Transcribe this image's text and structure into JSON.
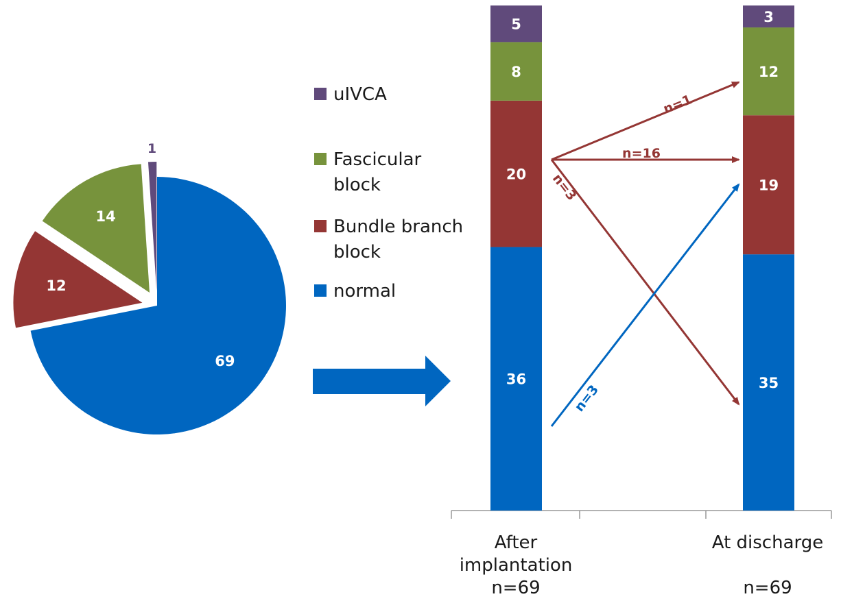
{
  "colors": {
    "uIVCA": "#604A7B",
    "Fascicular block": "#77933C",
    "Bundle branch block": "#943634",
    "normal": "#0066C0",
    "axis": "#999999",
    "text": "#1a1a1a"
  },
  "chart_data": [
    {
      "type": "pie",
      "exploded": true,
      "slices": [
        {
          "name": "normal",
          "value": 69
        },
        {
          "name": "Bundle branch block",
          "value": 12
        },
        {
          "name": "Fascicular block",
          "value": 14
        },
        {
          "name": "uIVCA",
          "value": 1
        }
      ]
    },
    {
      "type": "bar",
      "stacked": true,
      "categories": [
        [
          "After",
          "implantation",
          "n=69"
        ],
        [
          "At discharge",
          "",
          "n=69"
        ]
      ],
      "series": [
        {
          "name": "normal",
          "values": [
            36,
            35
          ]
        },
        {
          "name": "Bundle branch block",
          "values": [
            20,
            19
          ]
        },
        {
          "name": "Fascicular block",
          "values": [
            8,
            12
          ]
        },
        {
          "name": "uIVCA",
          "values": [
            5,
            3
          ]
        }
      ],
      "ylim": [
        0,
        69
      ],
      "grid": false,
      "legend": {
        "placement": "left",
        "items": [
          {
            "series": "uIVCA",
            "lines": [
              "uIVCA"
            ]
          },
          {
            "series": "Fascicular block",
            "lines": [
              "Fascicular",
              "block"
            ]
          },
          {
            "series": "Bundle branch block",
            "lines": [
              "Bundle branch",
              "block"
            ]
          },
          {
            "series": "normal",
            "lines": [
              "normal"
            ]
          }
        ]
      },
      "flows": [
        {
          "from": "Bundle branch block",
          "to": "Fascicular block",
          "label": "n=1"
        },
        {
          "from": "Bundle branch block",
          "to": "Bundle branch block",
          "label": "n=16"
        },
        {
          "from": "Bundle branch block",
          "to": "normal",
          "label": "n=3"
        },
        {
          "from": "normal",
          "to": "Bundle branch block",
          "label": "n=3"
        }
      ]
    }
  ]
}
